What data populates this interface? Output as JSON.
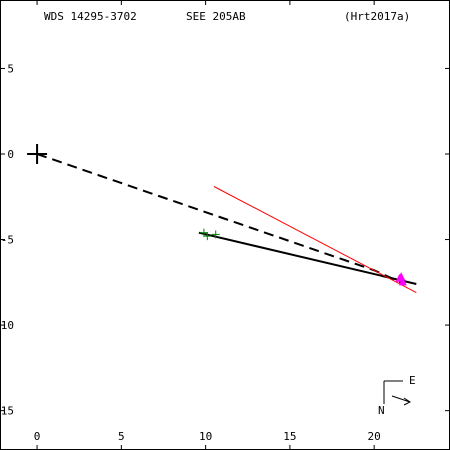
{
  "header": {
    "wds": "WDS 14295-3702",
    "discoverer": "SEE 205AB",
    "reference": "(Hrt2017a)"
  },
  "orientation": {
    "east_label": "E",
    "north_label": "N"
  },
  "colors": {
    "axes": "#000000",
    "orbit": "#000000",
    "observations": "#008000",
    "residual_line": "#ff0000",
    "latest_point": "#ff00ff"
  },
  "chart_data": {
    "type": "scatter",
    "title": "",
    "xlabel": "",
    "ylabel": "",
    "xlim": [
      -2.2,
      24.5
    ],
    "ylim": [
      -17.3,
      9.0
    ],
    "x_ticks": [
      0,
      5,
      10,
      15,
      20
    ],
    "y_ticks": [
      5,
      0,
      -5,
      -10,
      -15
    ],
    "x_tick_labels": [
      "0",
      "5",
      "10",
      "15",
      "20"
    ],
    "y_tick_labels": [
      "5",
      "0",
      "-5",
      "-10",
      "-15"
    ],
    "primary_star": {
      "x": 0,
      "y": 0
    },
    "series": [
      {
        "role": "orbit-dashed",
        "style": "dashed",
        "points": [
          [
            0,
            0
          ],
          [
            20.0,
            -6.8
          ],
          [
            21.8,
            -7.6
          ]
        ]
      },
      {
        "role": "orbit-solid",
        "style": "solid",
        "points": [
          [
            9.6,
            -4.6
          ],
          [
            22.5,
            -7.6
          ]
        ]
      },
      {
        "role": "residual",
        "style": "solid",
        "points": [
          [
            10.5,
            -1.9
          ],
          [
            22.5,
            -8.1
          ]
        ]
      },
      {
        "role": "observations",
        "style": "marker",
        "points": [
          [
            9.9,
            -4.6
          ],
          [
            10.1,
            -4.8
          ],
          [
            10.6,
            -4.7
          ]
        ]
      },
      {
        "role": "latest",
        "style": "marker",
        "points": [
          [
            21.6,
            -7.2
          ],
          [
            21.7,
            -7.5
          ],
          [
            21.5,
            -7.3
          ]
        ]
      }
    ]
  }
}
